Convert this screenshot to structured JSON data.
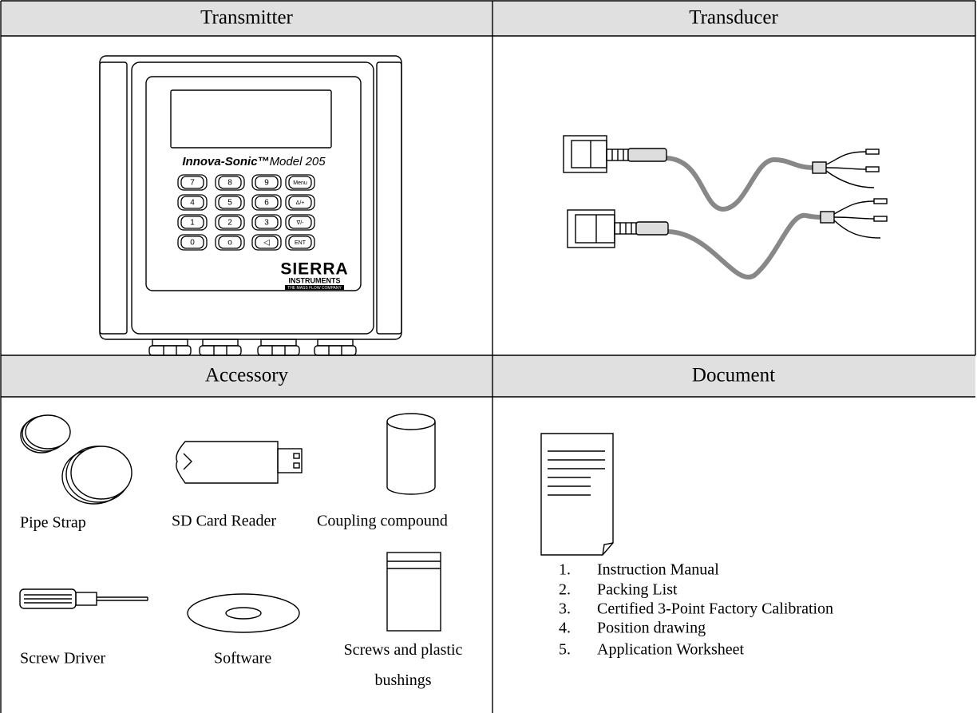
{
  "transmitter": {
    "header": "Transmitter",
    "brand": "Innova-Sonic™",
    "model": "Model 205",
    "keys": [
      "7",
      "8",
      "9",
      "Menu",
      "4",
      "5",
      "6",
      "Δ/+",
      "1",
      "2",
      "3",
      "∇/-",
      "0",
      "o",
      "◁",
      "ENT"
    ],
    "logo": "SIERRA",
    "logo_sub": "INSTRUMENTS",
    "tagline": "THE MASS FLOW COMPANY"
  },
  "transducer": {
    "header": "Transducer"
  },
  "accessory": {
    "header": "Accessory",
    "items": [
      "Pipe Strap",
      "SD Card Reader",
      "Coupling compound",
      "Screw Driver",
      "Software",
      "Screws and plastic bushings"
    ]
  },
  "document": {
    "header": "Document",
    "items": [
      {
        "number": "1.",
        "text": "Instruction Manual"
      },
      {
        "number": "2.",
        "text": "Packing List"
      },
      {
        "number": "3.",
        "text": "Certified 3-Point Factory Calibration"
      },
      {
        "number": "4.",
        "text": "Position drawing"
      },
      {
        "number": "5.",
        "text": "Application Worksheet"
      }
    ]
  }
}
